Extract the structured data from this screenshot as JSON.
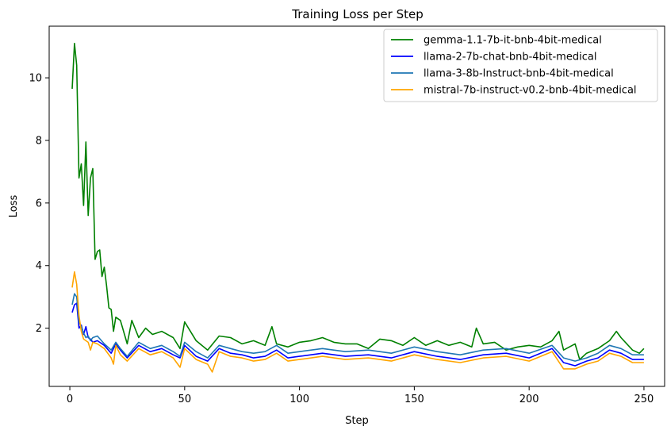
{
  "chart_data": {
    "type": "line",
    "title": "Training Loss per Step",
    "xlabel": "Step",
    "ylabel": "Loss",
    "xlim": [
      -9,
      259
    ],
    "ylim": [
      0.14,
      11.65
    ],
    "xticks": [
      0,
      50,
      100,
      150,
      200,
      250
    ],
    "yticks": [
      2,
      4,
      6,
      8,
      10
    ],
    "grid": false,
    "legend_position": "top-right",
    "series": [
      {
        "name": "gemma-1.1-7b-it-bnb-4bit-medical",
        "color": "#008000",
        "x": [
          1,
          2,
          3,
          4,
          5,
          6,
          7,
          8,
          9,
          10,
          11,
          12,
          13,
          14,
          15,
          16,
          17,
          18,
          19,
          20,
          22,
          25,
          27,
          30,
          33,
          36,
          40,
          45,
          48,
          50,
          55,
          60,
          65,
          70,
          75,
          80,
          85,
          88,
          90,
          95,
          100,
          105,
          110,
          115,
          120,
          125,
          130,
          135,
          140,
          145,
          150,
          155,
          160,
          165,
          170,
          175,
          177,
          180,
          185,
          190,
          195,
          200,
          205,
          210,
          213,
          215,
          220,
          222,
          225,
          230,
          235,
          238,
          240,
          245,
          248,
          250
        ],
        "y": [
          9.65,
          11.1,
          10.4,
          6.8,
          7.25,
          5.92,
          7.95,
          5.6,
          6.8,
          7.1,
          4.2,
          4.45,
          4.5,
          3.65,
          3.95,
          3.35,
          2.65,
          2.6,
          1.9,
          2.35,
          2.25,
          1.5,
          2.25,
          1.7,
          2.0,
          1.8,
          1.9,
          1.7,
          1.35,
          2.2,
          1.6,
          1.3,
          1.75,
          1.7,
          1.5,
          1.6,
          1.45,
          2.05,
          1.5,
          1.4,
          1.55,
          1.6,
          1.7,
          1.55,
          1.5,
          1.5,
          1.35,
          1.65,
          1.6,
          1.45,
          1.7,
          1.45,
          1.6,
          1.45,
          1.55,
          1.4,
          2.0,
          1.5,
          1.55,
          1.3,
          1.4,
          1.45,
          1.4,
          1.6,
          1.9,
          1.3,
          1.5,
          1.0,
          1.2,
          1.35,
          1.6,
          1.9,
          1.7,
          1.3,
          1.2,
          1.35
        ]
      },
      {
        "name": "llama-2-7b-chat-bnb-4bit-medical",
        "color": "#0000ff",
        "x": [
          1,
          2,
          3,
          4,
          5,
          6,
          7,
          8,
          9,
          10,
          12,
          15,
          18,
          20,
          22,
          25,
          30,
          35,
          40,
          45,
          48,
          50,
          55,
          60,
          65,
          70,
          75,
          80,
          85,
          90,
          95,
          100,
          110,
          120,
          130,
          140,
          150,
          160,
          170,
          180,
          190,
          200,
          210,
          215,
          220,
          225,
          230,
          235,
          240,
          245,
          250
        ],
        "y": [
          2.5,
          2.75,
          2.8,
          2.0,
          2.1,
          1.8,
          2.05,
          1.7,
          1.65,
          1.55,
          1.6,
          1.45,
          1.2,
          1.5,
          1.3,
          1.05,
          1.45,
          1.25,
          1.35,
          1.15,
          1.05,
          1.45,
          1.1,
          0.95,
          1.35,
          1.2,
          1.15,
          1.05,
          1.1,
          1.3,
          1.05,
          1.1,
          1.2,
          1.1,
          1.15,
          1.05,
          1.25,
          1.1,
          1.0,
          1.15,
          1.2,
          1.05,
          1.35,
          0.9,
          0.8,
          0.95,
          1.05,
          1.3,
          1.2,
          1.0,
          1.0
        ]
      },
      {
        "name": "llama-3-8b-Instruct-bnb-4bit-medical",
        "color": "#1f77b4",
        "x": [
          1,
          2,
          3,
          4,
          5,
          6,
          7,
          8,
          9,
          10,
          12,
          15,
          18,
          20,
          22,
          25,
          30,
          35,
          40,
          45,
          48,
          50,
          55,
          60,
          65,
          70,
          75,
          80,
          85,
          90,
          95,
          100,
          110,
          120,
          130,
          140,
          150,
          160,
          170,
          180,
          190,
          200,
          210,
          215,
          220,
          225,
          230,
          235,
          240,
          245,
          250
        ],
        "y": [
          2.75,
          3.1,
          3.0,
          2.2,
          2.05,
          1.85,
          1.7,
          1.75,
          1.6,
          1.7,
          1.75,
          1.5,
          1.3,
          1.55,
          1.35,
          1.1,
          1.55,
          1.35,
          1.45,
          1.25,
          1.1,
          1.55,
          1.25,
          1.05,
          1.45,
          1.35,
          1.25,
          1.2,
          1.25,
          1.45,
          1.2,
          1.25,
          1.35,
          1.25,
          1.3,
          1.2,
          1.4,
          1.25,
          1.15,
          1.3,
          1.35,
          1.2,
          1.45,
          1.05,
          0.95,
          1.05,
          1.2,
          1.45,
          1.35,
          1.15,
          1.15
        ]
      },
      {
        "name": "mistral-7b-instruct-v0.2-bnb-4bit-medical",
        "color": "#ffa500",
        "x": [
          1,
          2,
          3,
          4,
          5,
          6,
          7,
          8,
          9,
          10,
          12,
          15,
          18,
          19,
          20,
          22,
          25,
          30,
          35,
          40,
          45,
          48,
          50,
          55,
          60,
          62,
          65,
          70,
          75,
          80,
          85,
          90,
          95,
          100,
          110,
          120,
          130,
          140,
          150,
          160,
          170,
          180,
          190,
          200,
          210,
          215,
          220,
          225,
          230,
          235,
          240,
          245,
          250
        ],
        "y": [
          3.3,
          3.8,
          3.4,
          2.4,
          1.9,
          1.65,
          1.6,
          1.55,
          1.3,
          1.55,
          1.5,
          1.35,
          1.05,
          0.85,
          1.45,
          1.15,
          0.95,
          1.35,
          1.15,
          1.25,
          1.05,
          0.75,
          1.35,
          1.0,
          0.85,
          0.6,
          1.25,
          1.1,
          1.05,
          0.95,
          1.0,
          1.2,
          0.95,
          1.0,
          1.1,
          1.0,
          1.05,
          0.95,
          1.15,
          1.0,
          0.9,
          1.05,
          1.1,
          0.95,
          1.25,
          0.7,
          0.7,
          0.85,
          0.95,
          1.2,
          1.1,
          0.9,
          0.9
        ]
      }
    ]
  }
}
